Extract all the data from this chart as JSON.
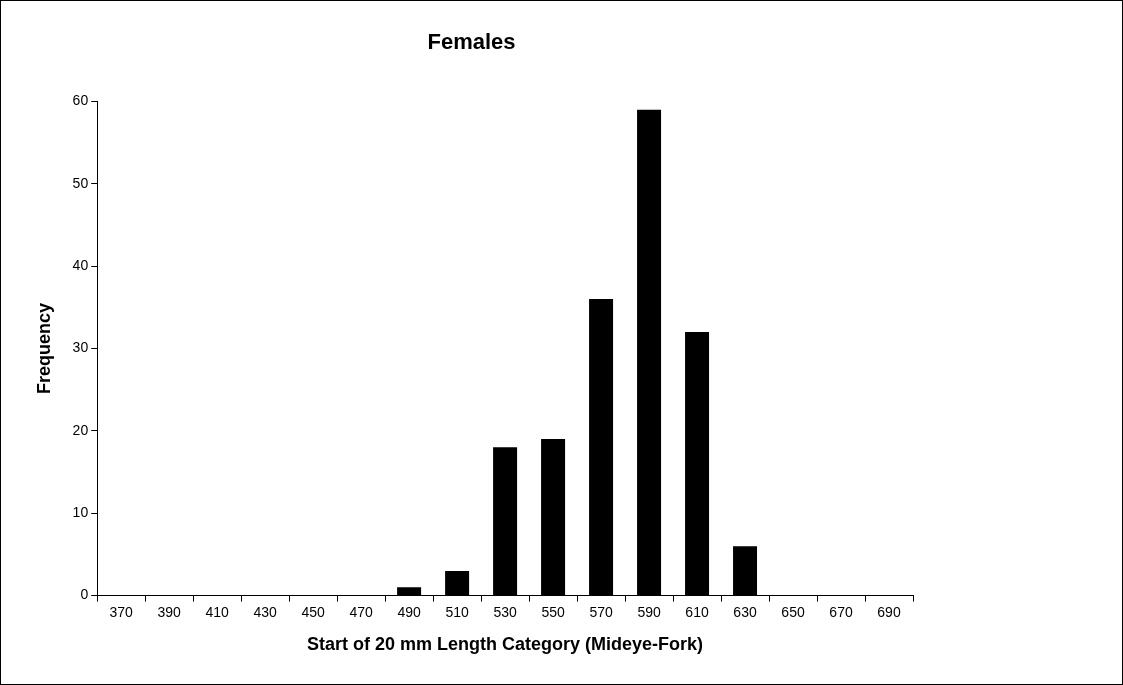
{
  "chart_data": {
    "type": "bar",
    "title": "Females",
    "xlabel": "Start of 20 mm Length Category (Mideye-Fork)",
    "ylabel": "Frequency",
    "categories": [
      "370",
      "390",
      "410",
      "430",
      "450",
      "470",
      "490",
      "510",
      "530",
      "550",
      "570",
      "590",
      "610",
      "630",
      "650",
      "670",
      "690"
    ],
    "values": [
      0,
      0,
      0,
      0,
      0,
      0,
      1,
      3,
      18,
      19,
      36,
      59,
      32,
      6,
      0,
      0,
      0
    ],
    "color": "#000000",
    "ylim": [
      0,
      60
    ],
    "yticks": [
      0,
      10,
      20,
      30,
      40,
      50,
      60
    ],
    "grid": false,
    "legend": false
  }
}
